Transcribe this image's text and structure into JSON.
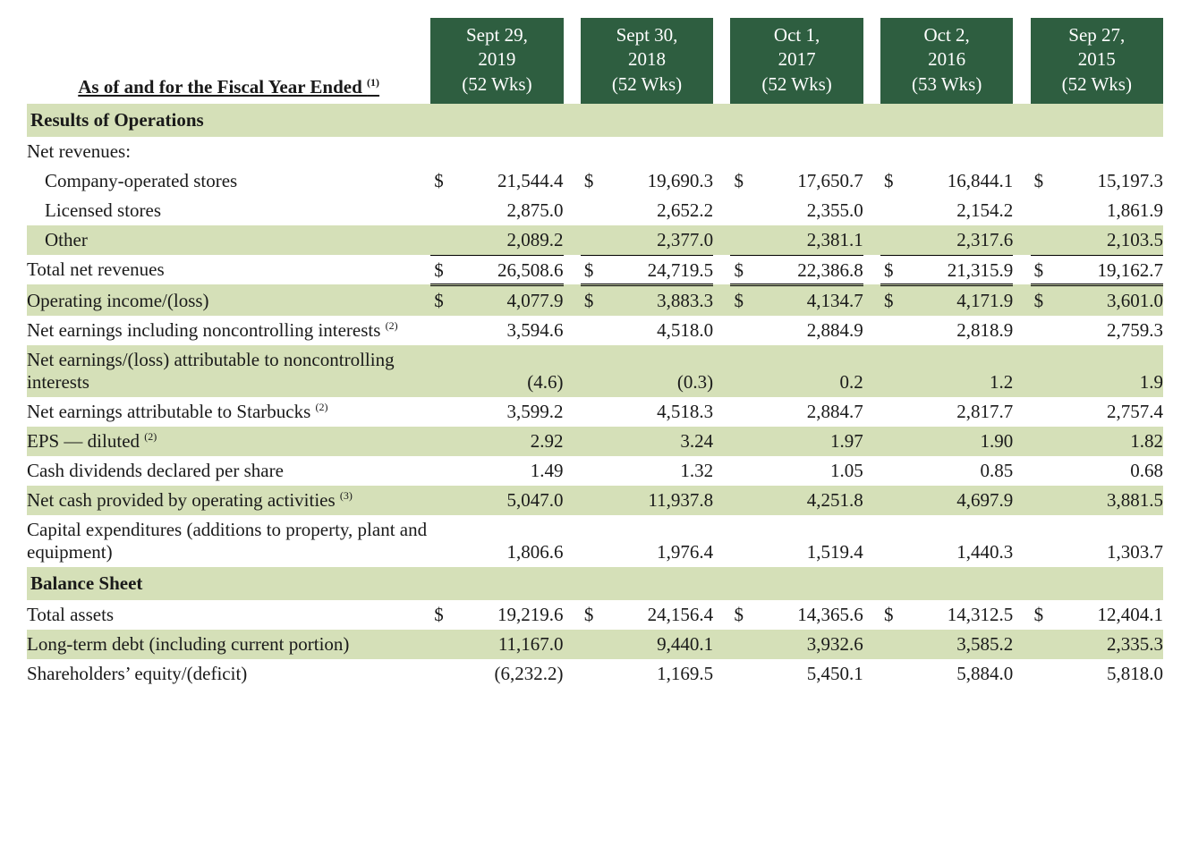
{
  "header": {
    "title_html": "As of and for the Fiscal Year Ended <sup>(1)</sup>",
    "periods": [
      {
        "line1": "Sept 29,",
        "line2": "2019",
        "line3": "(52 Wks)"
      },
      {
        "line1": "Sept 30,",
        "line2": "2018",
        "line3": "(52 Wks)"
      },
      {
        "line1": "Oct 1,",
        "line2": "2017",
        "line3": "(52 Wks)"
      },
      {
        "line1": "Oct 2,",
        "line2": "2016",
        "line3": "(53 Wks)"
      },
      {
        "line1": "Sep 27,",
        "line2": "2015",
        "line3": "(52 Wks)"
      }
    ]
  },
  "sections": [
    {
      "type": "section",
      "label": "Results of Operations"
    },
    {
      "type": "row",
      "label": "Net revenues:",
      "indent": 0,
      "shaded": false,
      "dollar": false,
      "values": [
        "",
        "",
        "",
        "",
        ""
      ]
    },
    {
      "type": "row",
      "label": "Company-operated stores",
      "indent": 1,
      "shaded": false,
      "dollar": true,
      "values": [
        "21,544.4",
        "19,690.3",
        "17,650.7",
        "16,844.1",
        "15,197.3"
      ]
    },
    {
      "type": "row",
      "label": "Licensed stores",
      "indent": 1,
      "shaded": false,
      "dollar": false,
      "values": [
        "2,875.0",
        "2,652.2",
        "2,355.0",
        "2,154.2",
        "1,861.9"
      ]
    },
    {
      "type": "row",
      "label": "Other",
      "indent": 1,
      "shaded": true,
      "dollar": false,
      "bottom_border": true,
      "values": [
        "2,089.2",
        "2,377.0",
        "2,381.1",
        "2,317.6",
        "2,103.5"
      ]
    },
    {
      "type": "row",
      "label": "Total net revenues",
      "indent": 0,
      "shaded": false,
      "dollar": true,
      "double_rule": true,
      "values": [
        "26,508.6",
        "24,719.5",
        "22,386.8",
        "21,315.9",
        "19,162.7"
      ]
    },
    {
      "type": "row",
      "label": "Operating income/(loss)",
      "indent": 0,
      "shaded": true,
      "dollar": true,
      "values": [
        "4,077.9",
        "3,883.3",
        "4,134.7",
        "4,171.9",
        "3,601.0"
      ]
    },
    {
      "type": "row",
      "label_html": "Net earnings including noncontrolling interests <sup>(2)</sup>",
      "indent": 0,
      "shaded": false,
      "dollar": false,
      "values": [
        "3,594.6",
        "4,518.0",
        "2,884.9",
        "2,818.9",
        "2,759.3"
      ]
    },
    {
      "type": "row",
      "label": "Net earnings/(loss) attributable to noncontrolling interests",
      "indent": 0,
      "shaded": true,
      "dollar": false,
      "values": [
        "(4.6)",
        "(0.3)",
        "0.2",
        "1.2",
        "1.9"
      ]
    },
    {
      "type": "row",
      "label_html": "Net earnings attributable to Starbucks <sup>(2)</sup>",
      "indent": 0,
      "shaded": false,
      "dollar": false,
      "values": [
        "3,599.2",
        "4,518.3",
        "2,884.7",
        "2,817.7",
        "2,757.4"
      ]
    },
    {
      "type": "row",
      "label_html": "EPS — diluted <sup>(2)</sup>",
      "indent": 0,
      "shaded": true,
      "dollar": false,
      "values": [
        "2.92",
        "3.24",
        "1.97",
        "1.90",
        "1.82"
      ]
    },
    {
      "type": "row",
      "label": "Cash dividends declared per share",
      "indent": 0,
      "shaded": false,
      "dollar": false,
      "values": [
        "1.49",
        "1.32",
        "1.05",
        "0.85",
        "0.68"
      ]
    },
    {
      "type": "row",
      "label_html": "Net cash provided by operating activities <sup>(3)</sup>",
      "indent": 0,
      "shaded": true,
      "dollar": false,
      "values": [
        "5,047.0",
        "11,937.8",
        "4,251.8",
        "4,697.9",
        "3,881.5"
      ]
    },
    {
      "type": "row",
      "label": "Capital expenditures (additions to property, plant and equipment)",
      "indent": 0,
      "shaded": false,
      "dollar": false,
      "values": [
        "1,806.6",
        "1,976.4",
        "1,519.4",
        "1,440.3",
        "1,303.7"
      ]
    },
    {
      "type": "section",
      "label": "Balance Sheet"
    },
    {
      "type": "row",
      "label": "Total assets",
      "indent": 0,
      "shaded": false,
      "dollar": true,
      "values": [
        "19,219.6",
        "24,156.4",
        "14,365.6",
        "14,312.5",
        "12,404.1"
      ]
    },
    {
      "type": "row",
      "label": "Long-term debt (including current portion)",
      "indent": 0,
      "shaded": true,
      "dollar": false,
      "values": [
        "11,167.0",
        "9,440.1",
        "3,932.6",
        "3,585.2",
        "2,335.3"
      ]
    },
    {
      "type": "row",
      "label": "Shareholders’ equity/(deficit)",
      "indent": 0,
      "shaded": false,
      "dollar": false,
      "values": [
        "(6,232.2)",
        "1,169.5",
        "5,450.1",
        "5,884.0",
        "5,818.0"
      ]
    }
  ],
  "colors": {
    "header_bg": "#2e5e40",
    "header_fg": "#ffffff",
    "shade_bg": "#d5e0b8",
    "text": "#1a1a1a"
  }
}
